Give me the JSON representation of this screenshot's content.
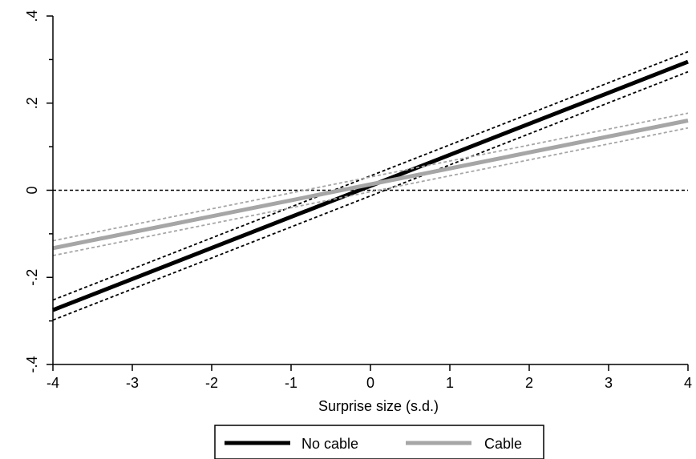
{
  "chart_data": {
    "type": "line",
    "title": "",
    "xlabel": "Surprise size (s.d.)",
    "ylabel": "",
    "xlim": [
      -4,
      4
    ],
    "ylim": [
      -0.4,
      0.4
    ],
    "x_ticks": [
      -4,
      -3,
      -2,
      -1,
      0,
      1,
      2,
      3,
      4
    ],
    "x_tick_labels": [
      "-4",
      "-3",
      "-2",
      "-1",
      "0",
      "1",
      "2",
      "3",
      "4"
    ],
    "y_ticks": [
      -0.4,
      -0.2,
      0,
      0.2,
      0.4
    ],
    "y_tick_labels": [
      "-.4",
      "-.2",
      "0",
      ".2",
      ".4"
    ],
    "grid": false,
    "legend_position": "bottom",
    "reference_line": {
      "y": 0,
      "style": "dashed",
      "color": "#000000"
    },
    "series": [
      {
        "name": "No cable",
        "color": "#000000",
        "x": [
          -4,
          4
        ],
        "y": [
          -0.275,
          0.295
        ],
        "ci_lower": [
          -0.298,
          0.272
        ],
        "ci_upper": [
          -0.252,
          0.318
        ]
      },
      {
        "name": "Cable",
        "color": "#a6a6a6",
        "x": [
          -4,
          4
        ],
        "y": [
          -0.133,
          0.16
        ],
        "ci_lower": [
          -0.15,
          0.143
        ],
        "ci_upper": [
          -0.116,
          0.177
        ]
      }
    ]
  }
}
